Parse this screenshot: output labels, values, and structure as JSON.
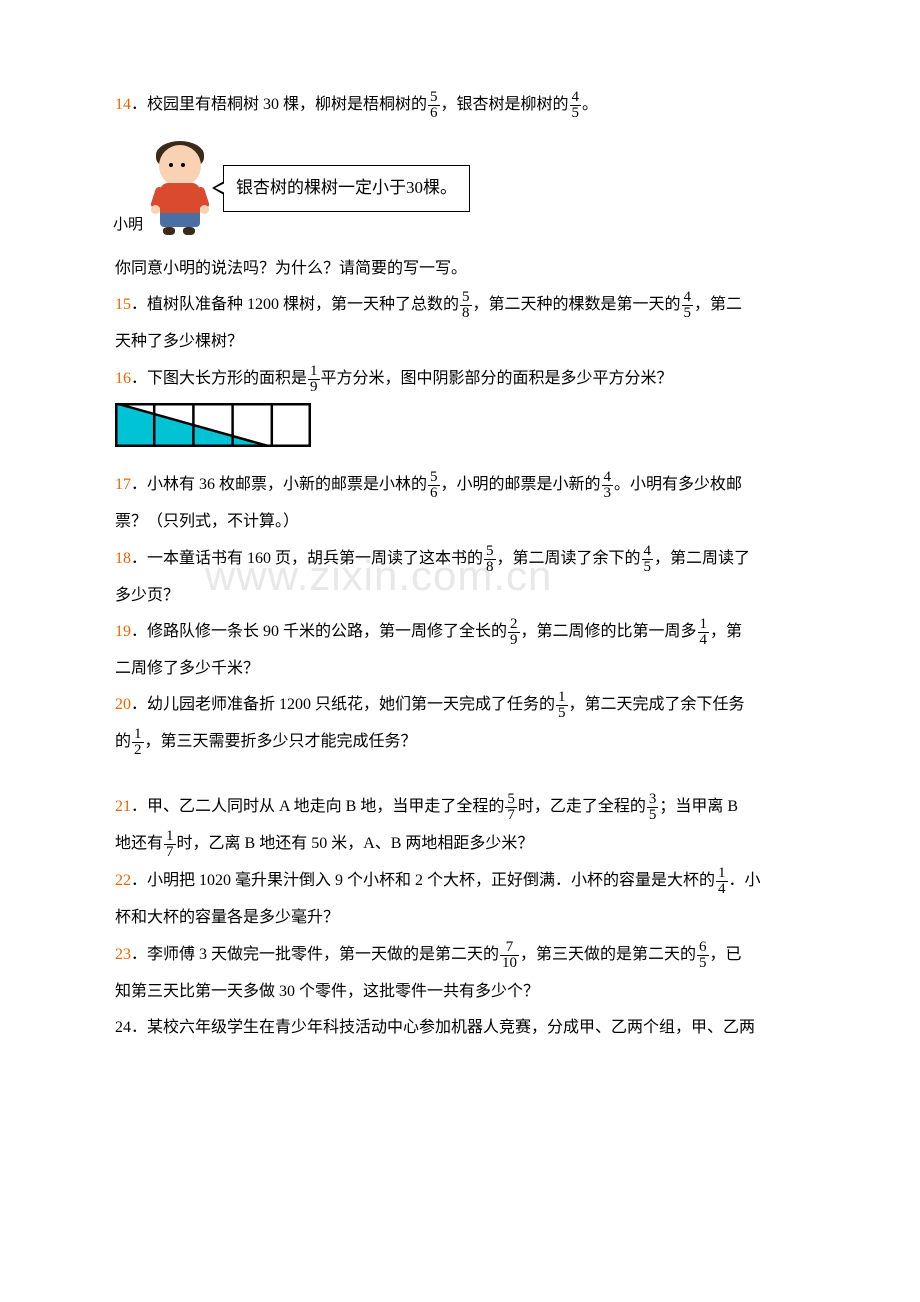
{
  "q14": {
    "num": "14",
    "text_a": "．校园里有梧桐树 30 棵，柳树是梧桐树的",
    "f1n": "5",
    "f1d": "6",
    "text_b": "，银杏树是柳树的",
    "f2n": "4",
    "f2d": "5",
    "text_c": "。",
    "xiaoming": "小明",
    "speech": "银杏树的棵树一定小于30棵。",
    "followup": "你同意小明的说法吗？为什么？请简要的写一写。"
  },
  "q15": {
    "num": "15",
    "text_a": "．植树队准备种 1200 棵树，第一天种了总数的",
    "f1n": "5",
    "f1d": "8",
    "text_b": "，第二天种的棵数是第一天的",
    "f2n": "4",
    "f2d": "5",
    "text_c": "，第二",
    "line2": "天种了多少棵树？"
  },
  "q16": {
    "num": "16",
    "text_a": "．下图大长方形的面积是",
    "f1n": "1",
    "f1d": "9",
    "text_b": "平方分米，图中阴影部分的面积是多少平方分米？",
    "svg": {
      "width": 196,
      "height": 44,
      "cols": 5,
      "shade_color": "#00c4d6",
      "stroke": "#000000",
      "stroke_width": 2.5
    }
  },
  "q17": {
    "num": "17",
    "text_a": "．小林有 36 枚邮票，小新的邮票是小林的",
    "f1n": "5",
    "f1d": "6",
    "text_b": "，小明的邮票是小新的",
    "f2n": "4",
    "f2d": "3",
    "text_c": "。小明有多少枚邮",
    "line2": "票？（只列式，不计算。）"
  },
  "q18": {
    "num": "18",
    "text_a": "．一本童话书有 160 页，胡兵第一周读了这本书的",
    "f1n": "5",
    "f1d": "8",
    "text_b": "，第二周读了余下的",
    "f2n": "4",
    "f2d": "5",
    "text_c": "，第二周读了",
    "line2": "多少页？",
    "watermark": "www.zixin.com.cn"
  },
  "q19": {
    "num": "19",
    "text_a": "．修路队修一条长 90 千米的公路，第一周修了全长的",
    "f1n": "2",
    "f1d": "9",
    "text_b": "，第二周修的比第一周多",
    "f2n": "1",
    "f2d": "4",
    "text_c": "，第",
    "line2": "二周修了多少千米？"
  },
  "q20": {
    "num": "20",
    "text_a": "．幼儿园老师准备折 1200 只纸花，她们第一天完成了任务的",
    "f1n": "1",
    "f1d": "5",
    "text_b": "，第二天完成了余下任务",
    "line2a": "的",
    "f2n": "1",
    "f2d": "2",
    "line2b": "，第三天需要折多少只才能完成任务？"
  },
  "q21": {
    "num": "21",
    "text_a": "．甲、乙二人同时从 A 地走向 B 地，当甲走了全程的",
    "f1n": "5",
    "f1d": "7",
    "text_b": "时，乙走了全程的",
    "f2n": "3",
    "f2d": "5",
    "text_c": "；当甲离 B",
    "line2a": "地还有",
    "f3n": "1",
    "f3d": "7",
    "line2b": "时，乙离 B 地还有 50 米，A、B 两地相距多少米？"
  },
  "q22": {
    "num": "22",
    "text_a": "．小明把 1020 毫升果汁倒入 9 个小杯和 2 个大杯，正好倒满．小杯的容量是大杯的",
    "f1n": "1",
    "f1d": "4",
    "text_b": "．小",
    "line2": "杯和大杯的容量各是多少毫升？"
  },
  "q23": {
    "num": "23",
    "text_a": "．李师傅 3 天做完一批零件，第一天做的是第二天的",
    "f1n": "7",
    "f1d": "10",
    "text_b": "，第三天做的是第二天的",
    "f2n": "6",
    "f2d": "5",
    "text_c": "，已",
    "line2": "知第三天比第一天多做 30 个零件，这批零件一共有多少个？"
  },
  "q24": {
    "num": "24",
    "text": "．某校六年级学生在青少年科技活动中心参加机器人竞赛，分成甲、乙两个组，甲、乙两"
  }
}
